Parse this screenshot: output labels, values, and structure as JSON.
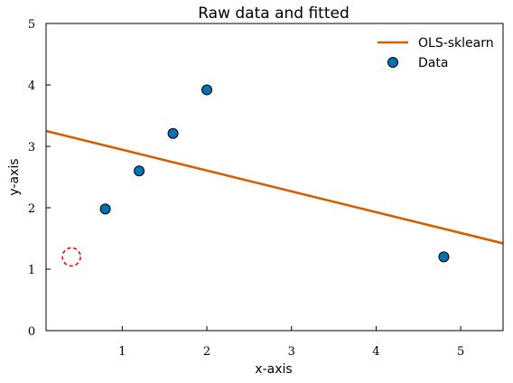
{
  "chart_data": {
    "type": "scatter",
    "title": "Raw data and fitted",
    "xlabel": "x-axis",
    "ylabel": "y-axis",
    "xlim": [
      0.1,
      5.5
    ],
    "ylim": [
      0,
      5
    ],
    "x_ticks": [
      "1",
      "2",
      "3",
      "4",
      "5"
    ],
    "y_ticks": [
      "0",
      "1",
      "2",
      "3",
      "4",
      "5"
    ],
    "grid": false,
    "legend_placement": "top-right",
    "series": [
      {
        "name": "OLS-sklearn",
        "kind": "line",
        "color": "#d55e00",
        "points": [
          [
            0.1,
            3.25
          ],
          [
            5.5,
            1.42
          ]
        ]
      },
      {
        "name": "Data",
        "kind": "scatter",
        "color": "#0072b2",
        "edge_color": "#000000",
        "points": [
          [
            0.8,
            1.98
          ],
          [
            1.2,
            2.6
          ],
          [
            1.6,
            3.21
          ],
          [
            2.0,
            3.92
          ],
          [
            4.8,
            1.2
          ]
        ]
      }
    ],
    "annotations": [
      {
        "kind": "dashed-circle",
        "color": "#ff0000",
        "center": [
          0.4,
          1.2
        ]
      }
    ]
  }
}
